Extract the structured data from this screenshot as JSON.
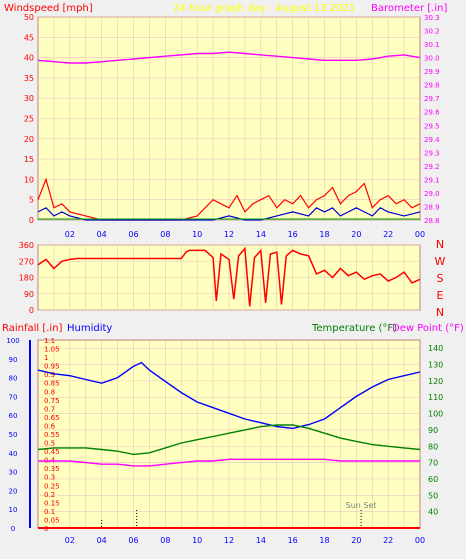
{
  "colors": {
    "page_bg": "#f0f0f0",
    "plot_bg": "#ffffc0",
    "grid": "#e8c8c0",
    "wind_speed": "#ff0000",
    "wind_gust": "#0000cc",
    "wind_zero": "#00aa00",
    "barometer": "#ff00ff",
    "direction": "#ff0000",
    "humidity": "#0000ff",
    "temperature": "#008000",
    "dew_point": "#ff00ff",
    "rainfall": "#ff0000",
    "title_text": "#ffff00",
    "marker_text": "#808080"
  },
  "header": {
    "windspeed_label": "Windspeed [mph]",
    "title": "24 hour graph day - August 13 2021",
    "barometer_label": "Barometer [.in]"
  },
  "x_ticks": [
    "02",
    "04",
    "06",
    "08",
    "10",
    "12",
    "14",
    "16",
    "18",
    "20",
    "22",
    "00"
  ],
  "bottom_x_ticks": [
    "02",
    "04",
    "06",
    "08",
    "10",
    "12",
    "14",
    "16",
    "18",
    "20",
    "22",
    "00"
  ],
  "direction_letters": [
    "N",
    "W",
    "S",
    "E",
    "N"
  ],
  "bottom_header": {
    "rainfall_label": "Rainfall [.in]",
    "humidity_label": "Humidity",
    "temperature_label": "Temperature (°F)",
    "dewpoint_label": "Dew Point (°F)"
  },
  "markers": {
    "sunset_label": "Sun Set",
    "sunrise_hour": 6.2,
    "sunset_hour": 20.3
  },
  "chart_data": [
    {
      "type": "line",
      "x_unit": "hour",
      "xlim": [
        0,
        24
      ],
      "y_left": {
        "label": "Windspeed [mph]",
        "lim": [
          0,
          50
        ],
        "ticks": [
          0,
          5,
          10,
          15,
          20,
          25,
          30,
          35,
          40,
          45,
          50
        ]
      },
      "y_right": {
        "label": "Barometer [.in]",
        "lim": [
          28.8,
          30.3
        ],
        "ticks": [
          28.8,
          28.9,
          29.0,
          29.1,
          29.2,
          29.3,
          29.4,
          29.5,
          29.6,
          29.7,
          29.8,
          29.9,
          30.0,
          30.1,
          30.2,
          30.3
        ]
      },
      "series": [
        {
          "name": "Barometer",
          "axis": "right",
          "x": [
            0,
            1,
            2,
            3,
            4,
            5,
            6,
            7,
            8,
            9,
            10,
            11,
            12,
            13,
            14,
            15,
            16,
            17,
            18,
            19,
            20,
            21,
            22,
            23,
            24
          ],
          "y": [
            29.98,
            29.97,
            29.96,
            29.96,
            29.97,
            29.98,
            29.99,
            30.0,
            30.01,
            30.02,
            30.03,
            30.03,
            30.04,
            30.03,
            30.02,
            30.01,
            30.0,
            29.99,
            29.98,
            29.98,
            29.98,
            29.99,
            30.01,
            30.02,
            30.0
          ]
        },
        {
          "name": "Wind speed",
          "axis": "left",
          "x": [
            0,
            0.5,
            1,
            1.5,
            2,
            3,
            4,
            5,
            6,
            7,
            8,
            9,
            10,
            10.5,
            11,
            11.5,
            12,
            12.5,
            13,
            13.5,
            14,
            14.5,
            15,
            15.5,
            16,
            16.5,
            17,
            17.5,
            18,
            18.5,
            19,
            19.5,
            20,
            20.5,
            21,
            21.5,
            22,
            22.5,
            23,
            23.5,
            24
          ],
          "y": [
            5,
            10,
            3,
            4,
            2,
            1,
            0,
            0,
            0,
            0,
            0,
            0,
            1,
            3,
            5,
            4,
            3,
            6,
            2,
            4,
            5,
            6,
            3,
            5,
            4,
            6,
            3,
            5,
            6,
            8,
            4,
            6,
            7,
            9,
            3,
            5,
            6,
            4,
            5,
            3,
            4
          ]
        },
        {
          "name": "Wind gust",
          "axis": "left",
          "x": [
            0,
            0.5,
            1,
            1.5,
            2,
            3,
            4,
            5,
            6,
            7,
            8,
            9,
            10,
            11,
            12,
            13,
            14,
            15,
            16,
            17,
            17.5,
            18,
            18.5,
            19,
            19.5,
            20,
            20.5,
            21,
            21.5,
            22,
            23,
            24
          ],
          "y": [
            2,
            3,
            1,
            2,
            1,
            0,
            0,
            0,
            0,
            0,
            0,
            0,
            0,
            0,
            1,
            0,
            0,
            1,
            2,
            1,
            3,
            2,
            3,
            1,
            2,
            3,
            2,
            1,
            3,
            2,
            1,
            2
          ]
        }
      ]
    },
    {
      "type": "scatter",
      "x_unit": "hour",
      "xlim": [
        0,
        24
      ],
      "y": {
        "lim": [
          0,
          360
        ],
        "ticks": [
          0,
          45,
          90,
          135,
          180,
          225,
          270,
          315,
          360
        ]
      },
      "series": [
        {
          "name": "Wind direction",
          "x": [
            0,
            0.5,
            1,
            1.5,
            2,
            2.5,
            3,
            4,
            5,
            6,
            7,
            8,
            9,
            9.3,
            9.5,
            10,
            10.5,
            11,
            11.2,
            11.5,
            12,
            12.3,
            12.6,
            13,
            13.3,
            13.6,
            14,
            14.3,
            14.6,
            15,
            15.3,
            15.6,
            16,
            16.5,
            17,
            17.5,
            18,
            18.5,
            19,
            19.5,
            20,
            20.5,
            21,
            21.5,
            22,
            22.5,
            23,
            23.5,
            24
          ],
          "y": [
            250,
            280,
            230,
            270,
            280,
            285,
            285,
            285,
            285,
            285,
            285,
            285,
            285,
            320,
            330,
            330,
            330,
            290,
            50,
            310,
            280,
            60,
            300,
            340,
            20,
            290,
            330,
            40,
            310,
            320,
            30,
            300,
            330,
            310,
            300,
            200,
            220,
            180,
            230,
            190,
            210,
            170,
            190,
            200,
            160,
            180,
            210,
            150,
            170
          ]
        }
      ]
    },
    {
      "type": "line",
      "x_unit": "hour",
      "xlim": [
        0,
        24
      ],
      "y_left_outer": {
        "label": "Humidity",
        "lim": [
          0,
          100
        ],
        "ticks": [
          0,
          10,
          20,
          30,
          40,
          50,
          60,
          70,
          80,
          90,
          100
        ]
      },
      "y_left_inner": {
        "label": "Rainfall [.in]",
        "lim": [
          0,
          1.1
        ],
        "ticks": [
          0,
          0.05,
          0.1,
          0.15,
          0.2,
          0.25,
          0.3,
          0.35,
          0.4,
          0.45,
          0.5,
          0.55,
          0.6,
          0.65,
          0.7,
          0.75,
          0.8,
          0.85,
          0.9,
          0.95,
          1.0,
          1.05,
          1.1
        ]
      },
      "y_right": {
        "label": "Temperature (°F) / Dew Point (°F)",
        "lim": [
          30,
          145
        ],
        "ticks": [
          40,
          50,
          60,
          70,
          80,
          90,
          100,
          110,
          120,
          130,
          140
        ]
      },
      "series": [
        {
          "name": "Humidity",
          "axis": "left_outer",
          "x": [
            0,
            1,
            2,
            3,
            4,
            5,
            6,
            6.5,
            7,
            8,
            9,
            10,
            11,
            12,
            13,
            14,
            15,
            16,
            17,
            18,
            19,
            20,
            21,
            22,
            23,
            24
          ],
          "y": [
            84,
            82,
            81,
            79,
            77,
            80,
            86,
            88,
            84,
            78,
            72,
            67,
            64,
            61,
            58,
            56,
            54,
            53,
            55,
            58,
            64,
            70,
            75,
            79,
            81,
            83
          ]
        },
        {
          "name": "Temperature",
          "axis": "right",
          "x": [
            0,
            1,
            2,
            3,
            4,
            5,
            6,
            7,
            8,
            9,
            10,
            11,
            12,
            13,
            14,
            15,
            16,
            17,
            18,
            19,
            20,
            21,
            22,
            23,
            24
          ],
          "y": [
            78,
            79,
            79,
            79,
            78,
            77,
            75,
            76,
            79,
            82,
            84,
            86,
            88,
            90,
            92,
            93,
            93,
            91,
            88,
            85,
            83,
            81,
            80,
            79,
            78
          ]
        },
        {
          "name": "Dew Point",
          "axis": "right",
          "x": [
            0,
            1,
            2,
            3,
            4,
            5,
            6,
            7,
            8,
            9,
            10,
            11,
            12,
            13,
            14,
            15,
            16,
            17,
            18,
            19,
            20,
            21,
            22,
            23,
            24
          ],
          "y": [
            71,
            71,
            71,
            70,
            69,
            69,
            68,
            68,
            69,
            70,
            71,
            71,
            72,
            72,
            72,
            72,
            72,
            72,
            72,
            71,
            71,
            71,
            71,
            71,
            71
          ]
        },
        {
          "name": "Rainfall",
          "axis": "left_inner",
          "x": [
            0,
            24
          ],
          "y": [
            0,
            0
          ]
        }
      ]
    }
  ]
}
